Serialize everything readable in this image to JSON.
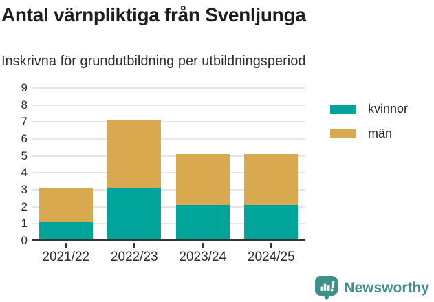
{
  "header": {
    "title": "Antal värnpliktiga från Svenljunga",
    "subtitle": "Inskrivna för grundutbildning per utbildningsperiod"
  },
  "chart_data": {
    "type": "bar",
    "stacked": true,
    "categories": [
      "2021/22",
      "2022/23",
      "2023/24",
      "2024/25"
    ],
    "series": [
      {
        "name": "kvinnor",
        "color": "#00a49a",
        "values": [
          1,
          3,
          2,
          2
        ]
      },
      {
        "name": "män",
        "color": "#d9a94f",
        "values": [
          2,
          4,
          3,
          3
        ]
      }
    ],
    "title": "Antal värnpliktiga från Svenljunga",
    "subtitle": "Inskrivna för grundutbildning per utbildningsperiod",
    "xlabel": "",
    "ylabel": "",
    "ylim": [
      0,
      9
    ],
    "ytick_step": 1,
    "grid": true,
    "legend_position": "right"
  },
  "colors": {
    "kvinnor": "#00a49a",
    "man": "#d9a94f",
    "axis": "#333333",
    "gridline": "#e6e6e6",
    "text": "#2d2d2d",
    "brand": "#3f9089"
  },
  "footer": {
    "brand": "Newsworthy"
  }
}
